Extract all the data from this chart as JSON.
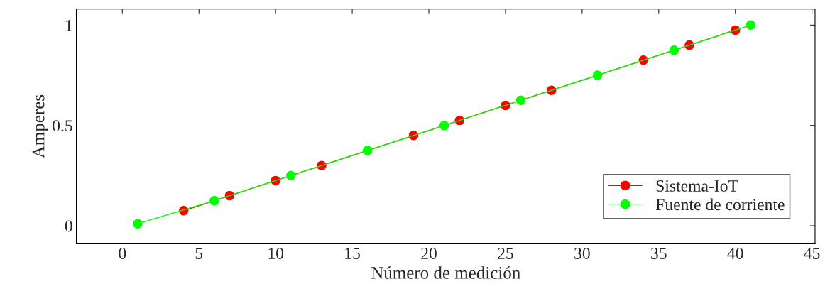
{
  "chart_data": {
    "type": "line",
    "xlabel": "Número de medición",
    "ylabel": "Amperes",
    "xlim": [
      -3,
      45.2
    ],
    "xticks": [
      0,
      5,
      10,
      15,
      20,
      25,
      30,
      35,
      40,
      45
    ],
    "ylim": [
      -0.09,
      1.08
    ],
    "yticks": [
      0,
      0.5,
      1
    ],
    "marker": "circle",
    "grid": false,
    "legend": "bottom right",
    "series": [
      {
        "name": "Sistema-IoT",
        "color": "#ff0000",
        "x": [
          4,
          7,
          10,
          13,
          19,
          22,
          25,
          28,
          34,
          37,
          40
        ],
        "values": [
          0.075,
          0.15,
          0.225,
          0.3,
          0.45,
          0.525,
          0.6,
          0.675,
          0.825,
          0.9,
          0.975
        ]
      },
      {
        "name": "Fuente de corriente",
        "color": "#00ff00",
        "x": [
          1,
          6,
          11,
          16,
          21,
          26,
          31,
          36,
          41
        ],
        "values": [
          0.01,
          0.125,
          0.25,
          0.375,
          0.5,
          0.625,
          0.75,
          0.875,
          1.0
        ]
      }
    ]
  }
}
